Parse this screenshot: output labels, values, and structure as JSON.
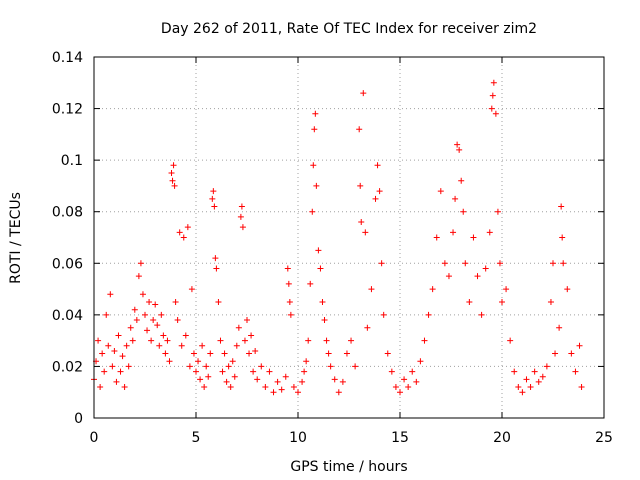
{
  "chart_data": {
    "type": "scatter",
    "title": "Day 262 of 2011, Rate Of TEC Index for receiver zim2",
    "xlabel": "GPS time / hours",
    "ylabel": "ROTI / TECUs",
    "xlim": [
      0,
      25
    ],
    "ylim": [
      0,
      0.14
    ],
    "xticks": [
      0,
      5,
      10,
      15,
      20,
      25
    ],
    "yticks": [
      0,
      0.02,
      0.04,
      0.06,
      0.08,
      0.1,
      0.12,
      0.14
    ],
    "xtick_labels": [
      "0",
      "5",
      "10",
      "15",
      "20",
      "25"
    ],
    "ytick_labels": [
      "0",
      "0.02",
      "0.04",
      "0.06",
      "0.08",
      "0.1",
      "0.12",
      "0.14"
    ],
    "grid": true,
    "marker": "+",
    "color": "#ff0000",
    "series": [
      {
        "name": "ROTI",
        "points": [
          [
            0.0,
            0.015
          ],
          [
            0.1,
            0.022
          ],
          [
            0.2,
            0.03
          ],
          [
            0.3,
            0.012
          ],
          [
            0.4,
            0.025
          ],
          [
            0.5,
            0.018
          ],
          [
            0.6,
            0.04
          ],
          [
            0.7,
            0.028
          ],
          [
            0.8,
            0.048
          ],
          [
            0.9,
            0.02
          ],
          [
            1.0,
            0.026
          ],
          [
            1.1,
            0.014
          ],
          [
            1.2,
            0.032
          ],
          [
            1.3,
            0.018
          ],
          [
            1.4,
            0.024
          ],
          [
            1.5,
            0.012
          ],
          [
            1.6,
            0.028
          ],
          [
            1.7,
            0.02
          ],
          [
            1.8,
            0.035
          ],
          [
            1.9,
            0.03
          ],
          [
            2.0,
            0.042
          ],
          [
            2.1,
            0.038
          ],
          [
            2.2,
            0.055
          ],
          [
            2.3,
            0.06
          ],
          [
            2.4,
            0.048
          ],
          [
            2.5,
            0.04
          ],
          [
            2.6,
            0.034
          ],
          [
            2.7,
            0.045
          ],
          [
            2.8,
            0.03
          ],
          [
            2.9,
            0.038
          ],
          [
            3.0,
            0.044
          ],
          [
            3.1,
            0.036
          ],
          [
            3.2,
            0.028
          ],
          [
            3.3,
            0.04
          ],
          [
            3.4,
            0.032
          ],
          [
            3.5,
            0.025
          ],
          [
            3.6,
            0.03
          ],
          [
            3.7,
            0.022
          ],
          [
            3.8,
            0.095
          ],
          [
            3.85,
            0.092
          ],
          [
            3.9,
            0.098
          ],
          [
            3.95,
            0.09
          ],
          [
            4.0,
            0.045
          ],
          [
            4.1,
            0.038
          ],
          [
            4.2,
            0.072
          ],
          [
            4.3,
            0.028
          ],
          [
            4.4,
            0.07
          ],
          [
            4.5,
            0.032
          ],
          [
            4.6,
            0.074
          ],
          [
            4.7,
            0.02
          ],
          [
            4.8,
            0.05
          ],
          [
            4.9,
            0.025
          ],
          [
            5.0,
            0.018
          ],
          [
            5.1,
            0.022
          ],
          [
            5.2,
            0.015
          ],
          [
            5.3,
            0.028
          ],
          [
            5.4,
            0.012
          ],
          [
            5.5,
            0.02
          ],
          [
            5.6,
            0.016
          ],
          [
            5.7,
            0.025
          ],
          [
            5.8,
            0.085
          ],
          [
            5.85,
            0.088
          ],
          [
            5.9,
            0.082
          ],
          [
            5.95,
            0.062
          ],
          [
            6.0,
            0.058
          ],
          [
            6.1,
            0.045
          ],
          [
            6.2,
            0.03
          ],
          [
            6.3,
            0.018
          ],
          [
            6.4,
            0.025
          ],
          [
            6.5,
            0.014
          ],
          [
            6.6,
            0.02
          ],
          [
            6.7,
            0.012
          ],
          [
            6.8,
            0.022
          ],
          [
            6.9,
            0.016
          ],
          [
            7.0,
            0.028
          ],
          [
            7.1,
            0.035
          ],
          [
            7.2,
            0.078
          ],
          [
            7.25,
            0.082
          ],
          [
            7.3,
            0.074
          ],
          [
            7.4,
            0.03
          ],
          [
            7.5,
            0.038
          ],
          [
            7.6,
            0.025
          ],
          [
            7.7,
            0.032
          ],
          [
            7.8,
            0.018
          ],
          [
            7.9,
            0.026
          ],
          [
            8.0,
            0.015
          ],
          [
            8.2,
            0.02
          ],
          [
            8.4,
            0.012
          ],
          [
            8.6,
            0.018
          ],
          [
            8.8,
            0.01
          ],
          [
            9.0,
            0.014
          ],
          [
            9.2,
            0.011
          ],
          [
            9.4,
            0.016
          ],
          [
            9.5,
            0.058
          ],
          [
            9.55,
            0.052
          ],
          [
            9.6,
            0.045
          ],
          [
            9.65,
            0.04
          ],
          [
            9.8,
            0.012
          ],
          [
            10.0,
            0.01
          ],
          [
            10.2,
            0.014
          ],
          [
            10.3,
            0.018
          ],
          [
            10.4,
            0.022
          ],
          [
            10.5,
            0.03
          ],
          [
            10.6,
            0.052
          ],
          [
            10.7,
            0.08
          ],
          [
            10.75,
            0.098
          ],
          [
            10.8,
            0.112
          ],
          [
            10.85,
            0.118
          ],
          [
            10.9,
            0.09
          ],
          [
            11.0,
            0.065
          ],
          [
            11.1,
            0.058
          ],
          [
            11.2,
            0.045
          ],
          [
            11.3,
            0.038
          ],
          [
            11.4,
            0.03
          ],
          [
            11.5,
            0.025
          ],
          [
            11.6,
            0.02
          ],
          [
            11.8,
            0.015
          ],
          [
            12.0,
            0.01
          ],
          [
            12.2,
            0.014
          ],
          [
            12.4,
            0.025
          ],
          [
            12.6,
            0.03
          ],
          [
            12.8,
            0.02
          ],
          [
            13.0,
            0.112
          ],
          [
            13.05,
            0.09
          ],
          [
            13.1,
            0.076
          ],
          [
            13.2,
            0.126
          ],
          [
            13.3,
            0.072
          ],
          [
            13.4,
            0.035
          ],
          [
            13.6,
            0.05
          ],
          [
            13.8,
            0.085
          ],
          [
            13.9,
            0.098
          ],
          [
            14.0,
            0.088
          ],
          [
            14.1,
            0.06
          ],
          [
            14.2,
            0.04
          ],
          [
            14.4,
            0.025
          ],
          [
            14.6,
            0.018
          ],
          [
            14.8,
            0.012
          ],
          [
            15.0,
            0.01
          ],
          [
            15.2,
            0.015
          ],
          [
            15.4,
            0.012
          ],
          [
            15.6,
            0.018
          ],
          [
            15.8,
            0.014
          ],
          [
            16.0,
            0.022
          ],
          [
            16.2,
            0.03
          ],
          [
            16.4,
            0.04
          ],
          [
            16.6,
            0.05
          ],
          [
            16.8,
            0.07
          ],
          [
            17.0,
            0.088
          ],
          [
            17.2,
            0.06
          ],
          [
            17.4,
            0.055
          ],
          [
            17.6,
            0.072
          ],
          [
            17.7,
            0.085
          ],
          [
            17.8,
            0.106
          ],
          [
            17.9,
            0.104
          ],
          [
            18.0,
            0.092
          ],
          [
            18.1,
            0.08
          ],
          [
            18.2,
            0.06
          ],
          [
            18.4,
            0.045
          ],
          [
            18.6,
            0.07
          ],
          [
            18.8,
            0.055
          ],
          [
            19.0,
            0.04
          ],
          [
            19.2,
            0.058
          ],
          [
            19.4,
            0.072
          ],
          [
            19.5,
            0.12
          ],
          [
            19.55,
            0.125
          ],
          [
            19.6,
            0.13
          ],
          [
            19.7,
            0.118
          ],
          [
            19.8,
            0.08
          ],
          [
            19.9,
            0.06
          ],
          [
            20.0,
            0.045
          ],
          [
            20.2,
            0.05
          ],
          [
            20.4,
            0.03
          ],
          [
            20.6,
            0.018
          ],
          [
            20.8,
            0.012
          ],
          [
            21.0,
            0.01
          ],
          [
            21.2,
            0.015
          ],
          [
            21.4,
            0.012
          ],
          [
            21.6,
            0.018
          ],
          [
            21.8,
            0.014
          ],
          [
            22.0,
            0.016
          ],
          [
            22.2,
            0.02
          ],
          [
            22.4,
            0.045
          ],
          [
            22.5,
            0.06
          ],
          [
            22.6,
            0.025
          ],
          [
            22.8,
            0.035
          ],
          [
            22.9,
            0.082
          ],
          [
            22.95,
            0.07
          ],
          [
            23.0,
            0.06
          ],
          [
            23.2,
            0.05
          ],
          [
            23.4,
            0.025
          ],
          [
            23.6,
            0.018
          ],
          [
            23.8,
            0.028
          ],
          [
            23.9,
            0.012
          ]
        ]
      }
    ]
  }
}
